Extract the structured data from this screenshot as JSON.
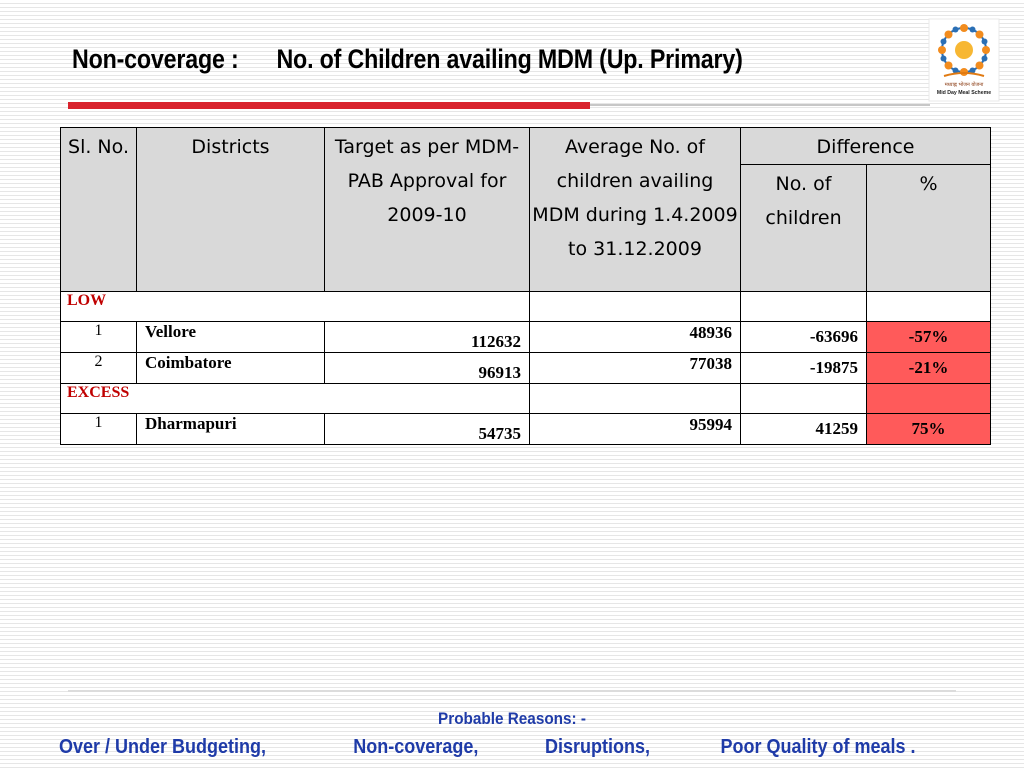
{
  "slide": {
    "title_left": "Non-coverage :",
    "title_right": "No. of Children availing MDM (Up. Primary)"
  },
  "logo": {
    "icon": "mid-day-meal-logo",
    "hindi_text": "मध्याह्न भोजन योजना",
    "english_text": "Mid Day Meal Scheme"
  },
  "table": {
    "headers": {
      "sl_no": "Sl. No.",
      "districts": "Districts",
      "target": "Target as per MDM-PAB Approval for 2009-10",
      "average": "Average No. of children availing MDM during 1.4.2009 to 31.12.2009",
      "difference": "Difference",
      "diff_children": "No. of children",
      "diff_percent": "%"
    },
    "sections": [
      {
        "label": "LOW",
        "rows": [
          {
            "sl": "1",
            "district": "Vellore",
            "target": "112632",
            "average": "48936",
            "diff": "-63696",
            "percent": "-57%"
          },
          {
            "sl": "2",
            "district": "Coimbatore",
            "target": "96913",
            "average": "77038",
            "diff": "-19875",
            "percent": "-21%"
          }
        ]
      },
      {
        "label": "EXCESS",
        "rows": [
          {
            "sl": "1",
            "district": "Dharmapuri",
            "target": "54735",
            "average": "95994",
            "diff": "41259",
            "percent": "75%"
          }
        ]
      }
    ],
    "highlight_color": "#ff5a5a"
  },
  "footer": {
    "title": "Probable Reasons: -",
    "reasons": [
      "Over / Under Budgeting,",
      "Non-coverage,",
      "Disruptions,",
      "Poor Quality of meals ."
    ]
  }
}
